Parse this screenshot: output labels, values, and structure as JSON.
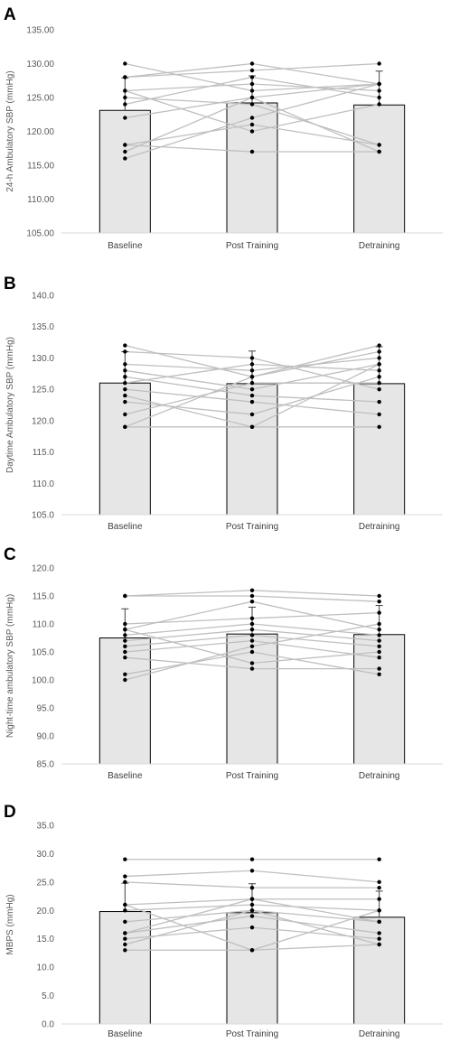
{
  "chart_data": [
    {
      "panel": "A",
      "type": "bar",
      "ylabel": "24-h Ambulatory SBP (mmHg)",
      "ylim": [
        105,
        135
      ],
      "yticks": [
        "105.00",
        "110.00",
        "115.00",
        "120.00",
        "125.00",
        "130.00",
        "135.00"
      ],
      "categories": [
        "Baseline",
        "Post Training",
        "Detraining"
      ],
      "values": [
        123.1,
        124.2,
        123.9
      ],
      "error": [
        4.8,
        4.0,
        5.0
      ],
      "subjects": [
        [
          130,
          126,
          127
        ],
        [
          128,
          130,
          127
        ],
        [
          128,
          129,
          130
        ],
        [
          126,
          127,
          126
        ],
        [
          125,
          124,
          118
        ],
        [
          126,
          120,
          124
        ],
        [
          122,
          125,
          127
        ],
        [
          118,
          121,
          118
        ],
        [
          117,
          125,
          117
        ],
        [
          116,
          122,
          127
        ],
        [
          118,
          117,
          117
        ],
        [
          124,
          128,
          125
        ]
      ],
      "grid": false,
      "bar_color": "#e7e6e6",
      "line_color": "#bfbfbf"
    },
    {
      "panel": "B",
      "type": "bar",
      "ylabel": "Daytime Ambulatory SBP (mmHg)",
      "ylim": [
        105,
        140
      ],
      "yticks": [
        "105.0",
        "110.0",
        "115.0",
        "120.0",
        "125.0",
        "130.0",
        "135.0",
        "140.0"
      ],
      "categories": [
        "Baseline",
        "Post Training",
        "Detraining"
      ],
      "values": [
        126.0,
        125.9,
        125.9
      ],
      "error": [
        5.0,
        5.2,
        5.9
      ],
      "subjects": [
        [
          132,
          127,
          132
        ],
        [
          131,
          130,
          125
        ],
        [
          129,
          128,
          130
        ],
        [
          128,
          125,
          129
        ],
        [
          127,
          124,
          123
        ],
        [
          126,
          129,
          128
        ],
        [
          125,
          123,
          121
        ],
        [
          123,
          121,
          127
        ],
        [
          121,
          126,
          126
        ],
        [
          119,
          119,
          119
        ],
        [
          119,
          127,
          131
        ],
        [
          124,
          119,
          129
        ]
      ],
      "grid": false,
      "bar_color": "#e7e6e6",
      "line_color": "#bfbfbf"
    },
    {
      "panel": "C",
      "type": "bar",
      "ylabel": "Night-time ambulatory SBP (mmHg)",
      "ylim": [
        85,
        120
      ],
      "yticks": [
        "85.0",
        "90.0",
        "95.0",
        "100.0",
        "105.0",
        "110.0",
        "115.0",
        "120.0"
      ],
      "categories": [
        "Baseline",
        "Post Training",
        "Detraining"
      ],
      "values": [
        107.5,
        108.2,
        108.1
      ],
      "error": [
        5.2,
        4.8,
        5.2
      ],
      "subjects": [
        [
          115,
          116,
          115
        ],
        [
          115,
          115,
          114
        ],
        [
          110,
          111,
          112
        ],
        [
          109,
          114,
          109
        ],
        [
          108,
          110,
          108
        ],
        [
          107,
          109,
          107
        ],
        [
          106,
          108,
          106
        ],
        [
          105,
          107,
          104
        ],
        [
          104,
          102,
          102
        ],
        [
          101,
          105,
          101
        ],
        [
          100,
          106,
          110
        ],
        [
          109,
          103,
          105
        ]
      ],
      "grid": false,
      "bar_color": "#e7e6e6",
      "line_color": "#bfbfbf"
    },
    {
      "panel": "D",
      "type": "bar",
      "ylabel": "MBPS (mmHg)",
      "ylim": [
        0,
        35
      ],
      "yticks": [
        "0.0",
        "5.0",
        "10.0",
        "15.0",
        "20.0",
        "25.0",
        "30.0",
        "35.0"
      ],
      "categories": [
        "Baseline",
        "Post Training",
        "Detraining"
      ],
      "values": [
        19.8,
        19.6,
        18.8
      ],
      "error": [
        5.0,
        5.1,
        4.6
      ],
      "subjects": [
        [
          29,
          29,
          29
        ],
        [
          26,
          27,
          25
        ],
        [
          25,
          24,
          24
        ],
        [
          21,
          22,
          22
        ],
        [
          20,
          21,
          20
        ],
        [
          18,
          20,
          18
        ],
        [
          16,
          19,
          16
        ],
        [
          15,
          17,
          15
        ],
        [
          13,
          13,
          14
        ],
        [
          21,
          13,
          20
        ],
        [
          16,
          22,
          18
        ],
        [
          14,
          20,
          14
        ]
      ],
      "grid": false,
      "bar_color": "#e7e6e6",
      "line_color": "#bfbfbf"
    }
  ]
}
